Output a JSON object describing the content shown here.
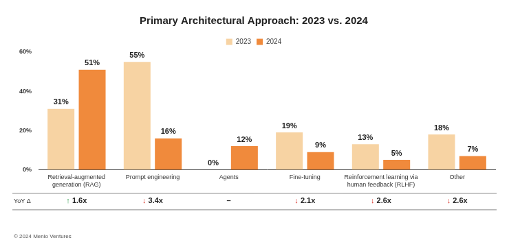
{
  "chart_data": {
    "type": "bar",
    "title": "Primary Architectural Approach: 2023 vs. 2024",
    "categories": [
      "Retrieval-augmented generation (RAG)",
      "Prompt engineering",
      "Agents",
      "Fine-tuning",
      "Reinforcement learning via human feedback (RLHF)",
      "Other"
    ],
    "series": [
      {
        "name": "2023",
        "color": "#f7d3a3",
        "values": [
          31,
          55,
          0,
          19,
          13,
          18
        ],
        "value_labels": [
          "31%",
          "55%",
          "0%",
          "19%",
          "13%",
          "18%"
        ]
      },
      {
        "name": "2024",
        "color": "#f08a3c",
        "values": [
          51,
          16,
          12,
          9,
          5,
          7
        ],
        "value_labels": [
          "51%",
          "16%",
          "12%",
          "9%",
          "5%",
          "7%"
        ]
      }
    ],
    "ylim": [
      0,
      60
    ],
    "yticks": [
      {
        "value": 0,
        "label": "0%"
      },
      {
        "value": 20,
        "label": "20%"
      },
      {
        "value": 40,
        "label": "40%"
      },
      {
        "value": 60,
        "label": "60%"
      }
    ],
    "grid": false,
    "legend": "top",
    "data_labels": true,
    "yoy": {
      "label": "YoY Δ",
      "values": [
        "↑ 1.6x",
        "↓ 3.4x",
        "–",
        "↓ 2.1x",
        "↓ 2.6x",
        "↓ 2.6x"
      ],
      "colors": [
        "#2e9b4a",
        "#d9342b",
        null,
        "#d9342b",
        "#d9342b",
        "#d9342b"
      ]
    },
    "footer": "© 2024 Menlo Ventures"
  }
}
